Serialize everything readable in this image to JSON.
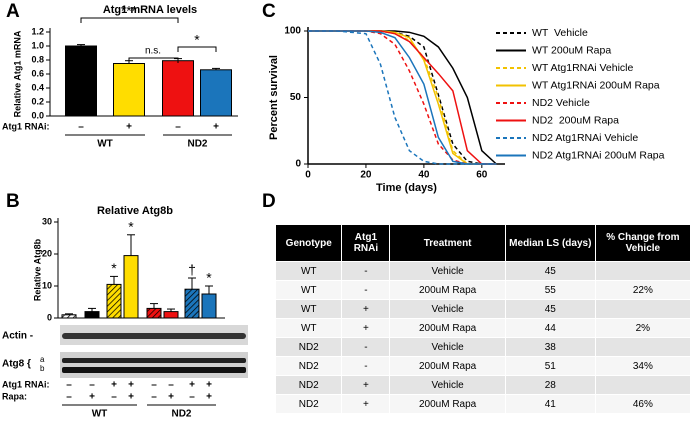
{
  "panel_labels": [
    "A",
    "B",
    "C",
    "D"
  ],
  "chart_data": [
    {
      "type": "bar",
      "title": "Atg1 mRNA levels",
      "ylabel": "Relative Atg1 mRNA",
      "values": [
        1.0,
        0.75,
        0.79,
        0.66
      ],
      "errors": [
        0.02,
        0.04,
        0.03,
        0.02
      ],
      "colors": [
        "#000000",
        "#ffdd00",
        "#ee1111",
        "#1b75bb"
      ],
      "ylim": [
        0,
        1.2
      ],
      "yticks": [
        {
          "value": 0,
          "label": "0.0"
        },
        {
          "value": 0.2,
          "label": "0.2"
        },
        {
          "value": 0.4,
          "label": "0.4"
        },
        {
          "value": 0.6,
          "label": "0.6"
        },
        {
          "value": 0.8,
          "label": "0.8"
        },
        {
          "value": 1,
          "label": "1.0"
        },
        {
          "value": 1.2,
          "label": "1.2"
        }
      ],
      "rows": [
        {
          "label": "Atg1 RNAi:",
          "values": [
            "–",
            "+",
            "–",
            "+"
          ]
        }
      ],
      "groups": [
        "WT",
        "ND2"
      ],
      "significance": [
        "***",
        "n.s.",
        "*"
      ]
    },
    {
      "type": "bar",
      "title": "Relative Atg8b",
      "ylabel": "Relative Atg8b",
      "values": [
        1,
        2,
        10.5,
        19.5,
        3,
        2,
        9,
        7.5
      ],
      "errors": [
        0.3,
        1,
        2.5,
        6.5,
        1.5,
        0.8,
        3.5,
        2.5
      ],
      "colors": [
        "#ffffff",
        "#000000",
        "#ffdd00",
        "#ffdd00",
        "#ee1111",
        "#ee1111",
        "#1b75bb",
        "#1b75bb"
      ],
      "hatched": [
        true,
        false,
        true,
        false,
        true,
        false,
        true,
        false
      ],
      "markers": [
        null,
        null,
        "*",
        "*",
        null,
        null,
        "†",
        "*"
      ],
      "ylim": [
        0,
        30
      ],
      "yticks": [
        0,
        10,
        20,
        30
      ],
      "rows": [
        {
          "label": "Atg1 RNAi:",
          "values": [
            "–",
            "–",
            "+",
            "+",
            "–",
            "–",
            "+",
            "+"
          ]
        },
        {
          "label": "Rapa:",
          "values": [
            "–",
            "+",
            "–",
            "+",
            "–",
            "+",
            "–",
            "+"
          ]
        }
      ],
      "groups": [
        "WT",
        "ND2"
      ],
      "blot_labels": [
        "Actin -",
        "Atg8 {"
      ],
      "band_labels": [
        "a",
        "b"
      ]
    },
    {
      "type": "line",
      "xlabel": "Time (days)",
      "ylabel": "Percent survival",
      "x": [
        0,
        10,
        20,
        25,
        30,
        35,
        40,
        45,
        50,
        55,
        60,
        65
      ],
      "series": [
        {
          "name": "WT  Vehicle",
          "color": "#000000",
          "dashed": true,
          "values": [
            100,
            100,
            100,
            100,
            99,
            96,
            88,
            52,
            15,
            2,
            0,
            0
          ]
        },
        {
          "name": "WT 200uM Rapa",
          "color": "#000000",
          "dashed": false,
          "values": [
            100,
            100,
            100,
            100,
            100,
            99,
            96,
            88,
            72,
            50,
            10,
            0
          ]
        },
        {
          "name": "WT Atg1RNAi Vehicle",
          "color": "#f2c200",
          "dashed": true,
          "values": [
            100,
            100,
            100,
            100,
            98,
            93,
            80,
            50,
            10,
            0,
            0,
            0
          ]
        },
        {
          "name": "WT Atg1RNAi 200uM Rapa",
          "color": "#f2c200",
          "dashed": false,
          "values": [
            100,
            100,
            100,
            100,
            99,
            95,
            78,
            45,
            8,
            0,
            0,
            0
          ]
        },
        {
          "name": "ND2 Vehicle",
          "color": "#ee1111",
          "dashed": true,
          "values": [
            100,
            100,
            100,
            98,
            90,
            70,
            45,
            15,
            3,
            0,
            0,
            0
          ]
        },
        {
          "name": "ND2  200uM Rapa",
          "color": "#ee1111",
          "dashed": false,
          "values": [
            100,
            100,
            100,
            100,
            98,
            92,
            80,
            68,
            55,
            10,
            0,
            0
          ]
        },
        {
          "name": "ND2 Atg1RNAi Vehicle",
          "color": "#1b75bb",
          "dashed": true,
          "values": [
            100,
            100,
            98,
            75,
            35,
            10,
            2,
            0,
            0,
            0,
            0,
            0
          ]
        },
        {
          "name": "ND2 Atg1RNAi 200uM Rapa",
          "color": "#1b75bb",
          "dashed": false,
          "values": [
            100,
            100,
            100,
            99,
            95,
            80,
            60,
            20,
            2,
            0,
            0,
            0
          ]
        }
      ],
      "xlim": [
        0,
        68
      ],
      "ylim": [
        0,
        100
      ],
      "xticks": [
        0,
        20,
        40,
        60
      ],
      "yticks": [
        0,
        50,
        100
      ],
      "legend": "right"
    }
  ],
  "table": {
    "header": [
      "Genotype",
      "Atg1 RNAi",
      "Treatment",
      "Median LS (days)",
      "% Change from Vehicle"
    ],
    "rows": [
      [
        "WT",
        "-",
        "Vehicle",
        45,
        null
      ],
      [
        "WT",
        "-",
        "200uM Rapa",
        55,
        "22%"
      ],
      [
        "WT",
        "+",
        "Vehicle",
        45,
        null
      ],
      [
        "WT",
        "+",
        "200uM Rapa",
        44,
        "2%"
      ],
      [
        "ND2",
        "-",
        "Vehicle",
        38,
        null
      ],
      [
        "ND2",
        "-",
        "200uM Rapa",
        51,
        "34%"
      ],
      [
        "ND2",
        "+",
        "Vehicle",
        28,
        null
      ],
      [
        "ND2",
        "+",
        "200uM Rapa",
        41,
        "46%"
      ]
    ]
  }
}
